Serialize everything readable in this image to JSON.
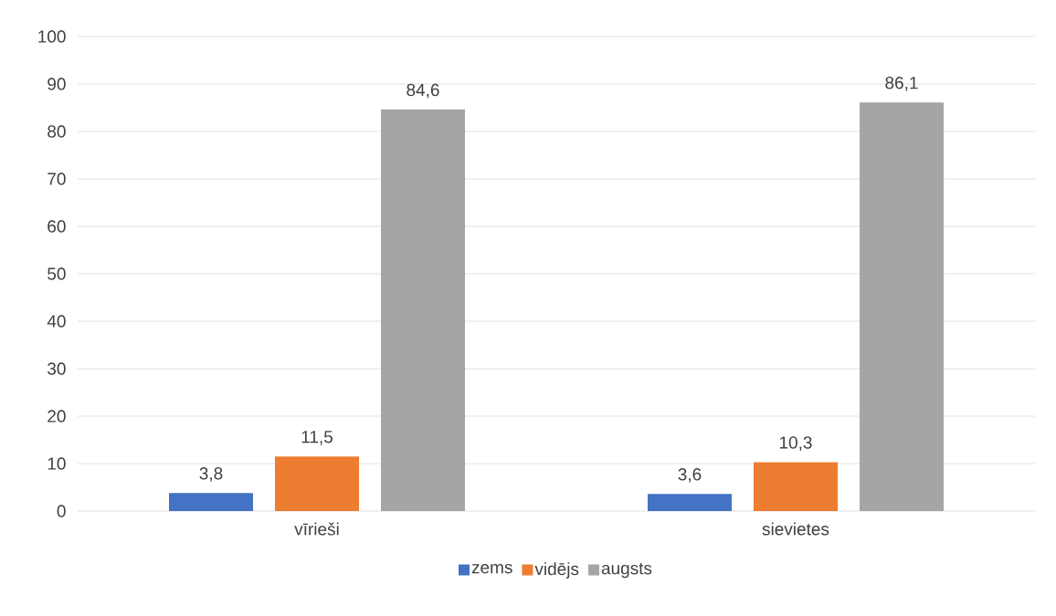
{
  "chart_data": {
    "type": "bar",
    "categories": [
      "vīrieši",
      "sievietes"
    ],
    "series": [
      {
        "name": "zems",
        "color": "#4472c4",
        "values": [
          3.8,
          3.6
        ],
        "value_labels": [
          "3,8",
          "3,6"
        ]
      },
      {
        "name": "vidējs",
        "color": "#ed7d31",
        "values": [
          11.5,
          10.3
        ],
        "value_labels": [
          "11,5",
          "10,3"
        ]
      },
      {
        "name": "augsts",
        "color": "#a5a5a5",
        "values": [
          84.6,
          86.1
        ],
        "value_labels": [
          "84,6",
          "86,1"
        ]
      }
    ],
    "ylim": [
      0,
      100
    ],
    "yticks": [
      0,
      10,
      20,
      30,
      40,
      50,
      60,
      70,
      80,
      90,
      100
    ],
    "grid": "y",
    "legend": "bottom"
  }
}
